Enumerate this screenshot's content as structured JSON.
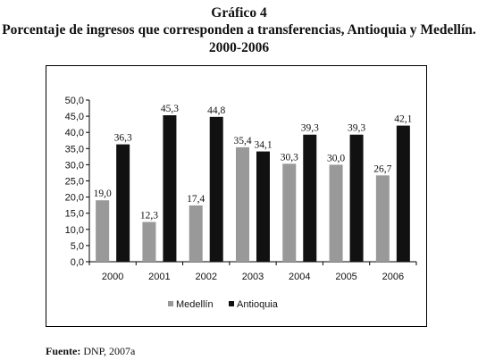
{
  "heading": {
    "line1": "Gráfico 4",
    "line2": "Porcentaje de ingresos que corresponden a transferencias, Antioquia y Medellín.",
    "line3": "2000-2006"
  },
  "source": {
    "label": "Fuente:",
    "text": "DNP, 2007a"
  },
  "chart_data": {
    "type": "bar",
    "categories": [
      "2000",
      "2001",
      "2002",
      "2003",
      "2004",
      "2005",
      "2006"
    ],
    "series": [
      {
        "name": "Medellín",
        "values": [
          19.0,
          12.3,
          17.4,
          35.4,
          30.3,
          30.0,
          26.7
        ],
        "labels": [
          "19,0",
          "12,3",
          "17,4",
          "35,4",
          "30,3",
          "30,0",
          "26,7"
        ],
        "color": "#999999"
      },
      {
        "name": "Antioquia",
        "values": [
          36.3,
          45.3,
          44.8,
          34.1,
          39.3,
          39.3,
          42.1
        ],
        "labels": [
          "36,3",
          "45,3",
          "44,8",
          "34,1",
          "39,3",
          "39,3",
          "42,1"
        ],
        "color": "#111111"
      }
    ],
    "ylim": [
      0,
      50
    ],
    "yticks": [
      0,
      5,
      10,
      15,
      20,
      25,
      30,
      35,
      40,
      45,
      50
    ],
    "ytick_labels": [
      "0,0",
      "5,0",
      "10,0",
      "15,0",
      "20,0",
      "25,0",
      "30,0",
      "35,0",
      "40,0",
      "45,0",
      "50,0"
    ],
    "grid": false,
    "legend_position": "bottom",
    "xlabel": "",
    "ylabel": ""
  }
}
